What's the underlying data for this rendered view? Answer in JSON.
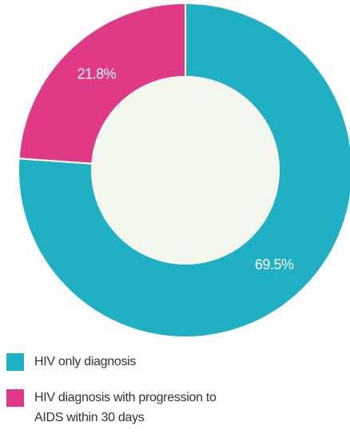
{
  "chart_data": {
    "type": "donut",
    "categories": [
      "HIV only diagnosis",
      "HIV diagnosis with progression to AIDS within 30 days"
    ],
    "values": [
      69.5,
      21.8
    ],
    "value_labels": [
      "69.5%",
      "21.8%"
    ],
    "colors": [
      "#1fb0c3",
      "#e03a86"
    ],
    "start_angle": 0,
    "direction": "clockwise",
    "legend": "bottom-left"
  }
}
